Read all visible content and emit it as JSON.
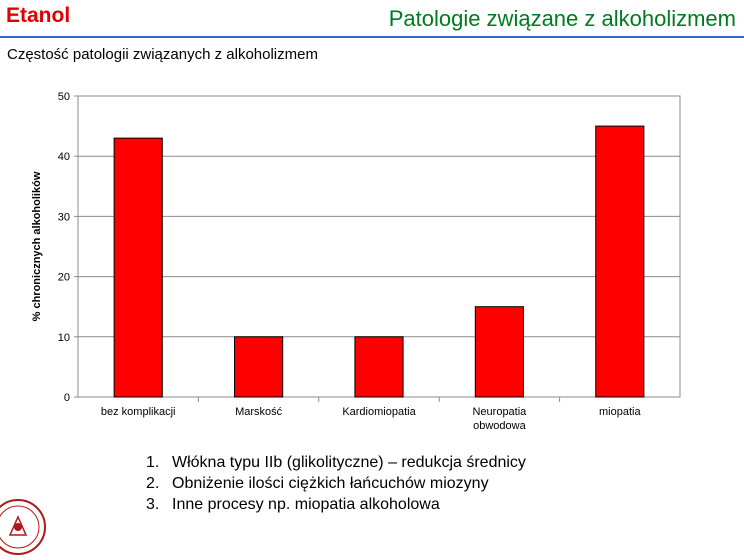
{
  "header": {
    "brand": "Etanol",
    "title": "Patologie związane z alkoholizmem"
  },
  "subtitle": "Częstość patologii związanych z alkoholizmem",
  "chart_data": {
    "type": "bar",
    "categories": [
      "bez komplikacji",
      "Marskość",
      "Kardiomiopatia",
      "Neuropatia obwodowa",
      "miopatia"
    ],
    "category_lines": [
      [
        "bez komplikacji"
      ],
      [
        "Marskość"
      ],
      [
        "Kardiomiopatia"
      ],
      [
        "Neuropatia",
        "obwodowa"
      ],
      [
        "miopatia"
      ]
    ],
    "values": [
      43,
      10,
      10,
      15,
      45
    ],
    "ylabel": "% chronicznych alkoholików",
    "xlabel": "",
    "ylim": [
      0,
      50
    ],
    "yticks": [
      0,
      10,
      20,
      30,
      40,
      50
    ],
    "grid": true,
    "legend": "none",
    "colors": {
      "bar": "#ff0000",
      "bar_edge": "#000000",
      "grid": "#8c8c8c",
      "axis": "#8c8c8c"
    }
  },
  "notes": [
    {
      "num": "1.",
      "text": "Włókna typu IIb (glikolityczne) – redukcja średnicy"
    },
    {
      "num": "2.",
      "text": "Obniżenie ilości ciężkich łańcuchów miozyny"
    },
    {
      "num": "3.",
      "text": "Inne procesy np. miopatia alkoholowa"
    }
  ],
  "logo": {
    "icon": "university-seal-icon",
    "color": "#b01818"
  }
}
